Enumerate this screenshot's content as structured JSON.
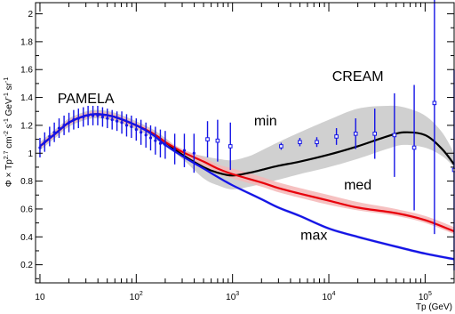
{
  "chart_data": {
    "type": "line",
    "title": "",
    "xlabel": "Tp (GeV)",
    "ylabel": "Φ × Tp^{2.7} cm^{-2} s^{-1} GeV^{-1} sr^{-1}",
    "ylabel_parts": {
      "main1": "Φ × Tp",
      "exp1": "2.7",
      "main2": " cm",
      "exp2": "-2",
      "main3": " s",
      "exp3": "-1",
      "main4": " GeV",
      "exp4": "-1",
      "main5": " sr",
      "exp5": "-1"
    },
    "xlabel_parts": {
      "main": "Tp (GeV)"
    },
    "x_scale": "log",
    "xlim": [
      9,
      200000
    ],
    "ylim": [
      0.07,
      2.08
    ],
    "x_ticks": [
      {
        "value": 10,
        "label": "10",
        "exp": ""
      },
      {
        "value": 100,
        "label": "10",
        "exp": "2"
      },
      {
        "value": 1000,
        "label": "10",
        "exp": "3"
      },
      {
        "value": 10000,
        "label": "10",
        "exp": "4"
      },
      {
        "value": 100000,
        "label": "10",
        "exp": "5"
      }
    ],
    "y_ticks": [
      {
        "value": 0.2,
        "label": "0.2"
      },
      {
        "value": 0.4,
        "label": "0.4"
      },
      {
        "value": 0.6,
        "label": "0.6"
      },
      {
        "value": 0.8,
        "label": "0.8"
      },
      {
        "value": 1.0,
        "label": "1"
      },
      {
        "value": 1.2,
        "label": "1.2"
      },
      {
        "value": 1.4,
        "label": "1.4"
      },
      {
        "value": 1.6,
        "label": "1.6"
      },
      {
        "value": 1.8,
        "label": "1.8"
      },
      {
        "value": 2.0,
        "label": "2"
      }
    ],
    "series": [
      {
        "name": "min",
        "color": "#000000",
        "band_color": "#c8c8c8",
        "x": [
          10,
          15,
          20,
          30,
          40,
          60,
          100,
          150,
          200,
          300,
          500,
          700,
          1000,
          1500,
          2000,
          3000,
          5000,
          10000,
          20000,
          40000,
          60000,
          100000,
          150000,
          200000
        ],
        "y": [
          1.05,
          1.15,
          1.22,
          1.27,
          1.28,
          1.26,
          1.2,
          1.14,
          1.08,
          0.99,
          0.9,
          0.86,
          0.84,
          0.86,
          0.88,
          0.91,
          0.94,
          0.99,
          1.05,
          1.12,
          1.15,
          1.13,
          1.03,
          0.92
        ],
        "band_lo": [
          1.02,
          1.12,
          1.19,
          1.24,
          1.25,
          1.23,
          1.17,
          1.11,
          1.05,
          0.96,
          0.82,
          0.77,
          0.74,
          0.76,
          0.78,
          0.81,
          0.85,
          0.9,
          0.96,
          1.03,
          1.06,
          1.04,
          0.98,
          0.9
        ],
        "band_hi": [
          1.08,
          1.18,
          1.25,
          1.3,
          1.31,
          1.29,
          1.23,
          1.17,
          1.11,
          1.02,
          0.98,
          0.96,
          0.95,
          0.98,
          1.02,
          1.08,
          1.15,
          1.24,
          1.32,
          1.34,
          1.33,
          1.27,
          1.15,
          1.0
        ]
      },
      {
        "name": "med",
        "color": "#e8000b",
        "band_color": "#f5b6b6",
        "x": [
          10,
          15,
          20,
          30,
          40,
          60,
          100,
          150,
          200,
          300,
          500,
          700,
          1000,
          2000,
          3000,
          5000,
          10000,
          20000,
          50000,
          100000,
          200000
        ],
        "y": [
          1.05,
          1.15,
          1.22,
          1.27,
          1.28,
          1.26,
          1.2,
          1.14,
          1.08,
          1.01,
          0.94,
          0.89,
          0.85,
          0.79,
          0.75,
          0.71,
          0.66,
          0.61,
          0.57,
          0.52,
          0.44
        ],
        "band_lo": [
          1.03,
          1.13,
          1.2,
          1.25,
          1.26,
          1.24,
          1.18,
          1.12,
          1.06,
          0.99,
          0.91,
          0.86,
          0.82,
          0.76,
          0.72,
          0.68,
          0.63,
          0.59,
          0.55,
          0.5,
          0.42
        ],
        "band_hi": [
          1.07,
          1.17,
          1.24,
          1.29,
          1.3,
          1.28,
          1.22,
          1.16,
          1.1,
          1.03,
          0.97,
          0.92,
          0.89,
          0.83,
          0.79,
          0.75,
          0.7,
          0.65,
          0.6,
          0.55,
          0.47
        ]
      },
      {
        "name": "max",
        "color": "#1414e6",
        "band_color": "#b4b4f0",
        "x": [
          10,
          15,
          20,
          30,
          40,
          60,
          100,
          150,
          200,
          300,
          500,
          700,
          1000,
          2000,
          3000,
          5000,
          10000,
          20000,
          50000,
          100000,
          200000
        ],
        "y": [
          1.05,
          1.15,
          1.22,
          1.27,
          1.28,
          1.26,
          1.2,
          1.13,
          1.06,
          0.98,
          0.89,
          0.83,
          0.77,
          0.67,
          0.61,
          0.55,
          0.46,
          0.4,
          0.33,
          0.28,
          0.24
        ],
        "band_lo": [
          1.04,
          1.14,
          1.21,
          1.26,
          1.27,
          1.25,
          1.19,
          1.12,
          1.05,
          0.97,
          0.88,
          0.82,
          0.76,
          0.66,
          0.6,
          0.54,
          0.45,
          0.39,
          0.32,
          0.27,
          0.23
        ],
        "band_hi": [
          1.06,
          1.16,
          1.23,
          1.28,
          1.29,
          1.27,
          1.21,
          1.14,
          1.07,
          0.99,
          0.9,
          0.84,
          0.78,
          0.68,
          0.62,
          0.56,
          0.47,
          0.41,
          0.34,
          0.29,
          0.25
        ]
      }
    ],
    "data_points": [
      {
        "name": "PAMELA",
        "color": "#1414e6",
        "marker": "dot",
        "points": [
          {
            "x": 10.0,
            "y": 1.04,
            "err": 0.07
          },
          {
            "x": 11.2,
            "y": 1.08,
            "err": 0.07
          },
          {
            "x": 12.6,
            "y": 1.12,
            "err": 0.07
          },
          {
            "x": 14.1,
            "y": 1.15,
            "err": 0.07
          },
          {
            "x": 15.8,
            "y": 1.18,
            "err": 0.07
          },
          {
            "x": 17.8,
            "y": 1.2,
            "err": 0.07
          },
          {
            "x": 20.0,
            "y": 1.22,
            "err": 0.07
          },
          {
            "x": 22.4,
            "y": 1.24,
            "err": 0.07
          },
          {
            "x": 25.1,
            "y": 1.25,
            "err": 0.07
          },
          {
            "x": 28.2,
            "y": 1.26,
            "err": 0.07
          },
          {
            "x": 31.6,
            "y": 1.27,
            "err": 0.07
          },
          {
            "x": 35.5,
            "y": 1.27,
            "err": 0.07
          },
          {
            "x": 39.8,
            "y": 1.27,
            "err": 0.07
          },
          {
            "x": 44.7,
            "y": 1.26,
            "err": 0.07
          },
          {
            "x": 50.1,
            "y": 1.25,
            "err": 0.07
          },
          {
            "x": 56.2,
            "y": 1.24,
            "err": 0.07
          },
          {
            "x": 63.1,
            "y": 1.23,
            "err": 0.07
          },
          {
            "x": 70.8,
            "y": 1.22,
            "err": 0.08
          },
          {
            "x": 79.4,
            "y": 1.2,
            "err": 0.08
          },
          {
            "x": 89.1,
            "y": 1.19,
            "err": 0.08
          },
          {
            "x": 100,
            "y": 1.17,
            "err": 0.08
          },
          {
            "x": 112,
            "y": 1.15,
            "err": 0.09
          },
          {
            "x": 126,
            "y": 1.13,
            "err": 0.09
          },
          {
            "x": 141,
            "y": 1.11,
            "err": 0.09
          },
          {
            "x": 158,
            "y": 1.09,
            "err": 0.1
          },
          {
            "x": 178,
            "y": 1.07,
            "err": 0.1
          },
          {
            "x": 200,
            "y": 1.06,
            "err": 0.1
          },
          {
            "x": 251,
            "y": 1.03,
            "err": 0.11
          },
          {
            "x": 316,
            "y": 1.02,
            "err": 0.12
          },
          {
            "x": 398,
            "y": 1.0,
            "err": 0.14
          }
        ]
      },
      {
        "name": "CREAM",
        "color": "#1414e6",
        "marker": "open",
        "points": [
          {
            "x": 550,
            "y": 1.1,
            "err": 0.13
          },
          {
            "x": 700,
            "y": 1.09,
            "err": 0.15
          },
          {
            "x": 950,
            "y": 1.05,
            "err": 0.17
          },
          {
            "x": 3200,
            "y": 1.05,
            "err": 0.025
          },
          {
            "x": 5000,
            "y": 1.08,
            "err": 0.03
          },
          {
            "x": 7500,
            "y": 1.08,
            "err": 0.035
          },
          {
            "x": 12000,
            "y": 1.12,
            "err": 0.06
          },
          {
            "x": 19000,
            "y": 1.14,
            "err": 0.11
          },
          {
            "x": 30000,
            "y": 1.14,
            "err": 0.18
          },
          {
            "x": 48000,
            "y": 1.13,
            "err": 0.3
          },
          {
            "x": 77000,
            "y": 1.04,
            "err": 0.45
          },
          {
            "x": 125000,
            "y": 1.36,
            "err": 0.94
          },
          {
            "x": 200000,
            "y": 0.88,
            "err": 0.72
          }
        ]
      }
    ],
    "annotations": [
      {
        "text": "PAMELA",
        "x": 30,
        "y": 1.36
      },
      {
        "text": "CREAM",
        "x": 20000,
        "y": 1.52
      },
      {
        "text": "min",
        "x": 2200,
        "y": 1.2
      },
      {
        "text": "med",
        "x": 20000,
        "y": 0.74
      },
      {
        "text": "max",
        "x": 7000,
        "y": 0.38
      }
    ],
    "grid": false,
    "legend": "none"
  }
}
